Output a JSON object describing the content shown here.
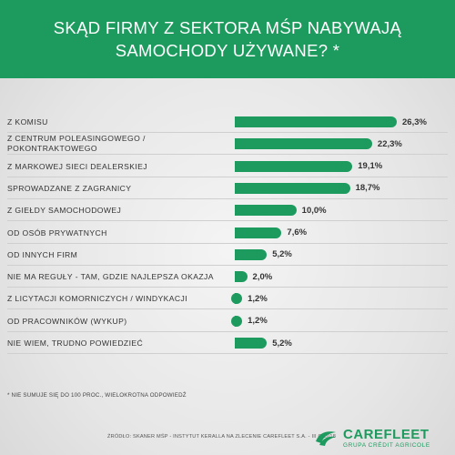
{
  "header": {
    "title_line1": "SKĄD FIRMY Z SEKTORA MŚP NABYWAJĄ",
    "title_line2": "SAMOCHODY UŻYWANE? *"
  },
  "chart_data": {
    "type": "bar",
    "orientation": "horizontal",
    "categories": [
      "Z KOMISU",
      "Z CENTRUM POLEASINGOWEGO / POKONTRAKTOWEGO",
      "Z MARKOWEJ SIECI DEALERSKIEJ",
      "SPROWADZANE Z ZAGRANICY",
      "Z GIEŁDY SAMOCHODOWEJ",
      "OD OSÓB PRYWATNYCH",
      "OD INNYCH FIRM",
      "NIE MA REGUŁY - TAM, GDZIE NAJLEPSZA OKAZJA",
      "Z LICYTACJI KOMORNICZYCH / WINDYKACJI",
      "OD PRACOWNIKÓW (WYKUP)",
      "NIE WIEM, TRUDNO POWIEDZIEĆ"
    ],
    "values": [
      26.3,
      22.3,
      19.1,
      18.7,
      10.0,
      7.6,
      5.2,
      2.0,
      1.2,
      1.2,
      5.2
    ],
    "value_labels": [
      "26,3%",
      "22,3%",
      "19,1%",
      "18,7%",
      "10,0%",
      "7,6%",
      "5,2%",
      "2,0%",
      "1,2%",
      "1,2%",
      "5,2%"
    ],
    "xlim": [
      0,
      30
    ],
    "grid": false,
    "legend": "none",
    "bar_color": "#1d9a5e"
  },
  "footnote": "* NIE SUMUJE SIĘ DO 100 PROC., WIELOKROTNA ODPOWIEDŹ",
  "source": "ŹRÓDŁO: SKANER MŚP - INSTYTUT KERALLA NA ZLECENIE CAREFLEET S.A. - III Q 2018",
  "logo": {
    "name": "CAREFLEET",
    "subtitle": "GRUPA CRÉDIT AGRICOLE",
    "icon": "credit-agricole-logo-icon"
  },
  "colors": {
    "accent": "#1d9a5e"
  }
}
